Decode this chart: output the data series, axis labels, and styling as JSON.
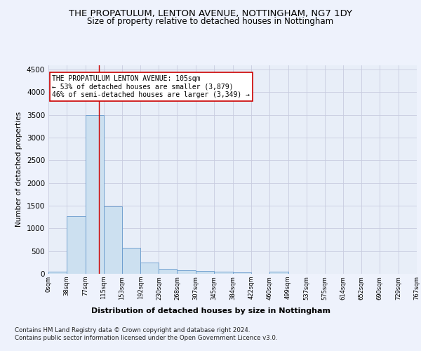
{
  "title": "THE PROPATULUM, LENTON AVENUE, NOTTINGHAM, NG7 1DY",
  "subtitle": "Size of property relative to detached houses in Nottingham",
  "xlabel": "Distribution of detached houses by size in Nottingham",
  "ylabel": "Number of detached properties",
  "bar_edges": [
    0,
    38,
    77,
    115,
    153,
    192,
    230,
    268,
    307,
    345,
    384,
    422,
    460,
    499,
    537,
    575,
    614,
    652,
    690,
    729,
    767
  ],
  "bar_heights": [
    40,
    1270,
    3500,
    1480,
    570,
    240,
    115,
    80,
    55,
    45,
    35,
    0,
    50,
    0,
    0,
    0,
    0,
    0,
    0,
    0
  ],
  "bar_color": "#cce0f0",
  "bar_edgecolor": "#6699cc",
  "property_size": 105,
  "vline_color": "#cc0000",
  "annotation_text": "THE PROPATULUM LENTON AVENUE: 105sqm\n← 53% of detached houses are smaller (3,879)\n46% of semi-detached houses are larger (3,349) →",
  "annotation_box_color": "#ffffff",
  "annotation_box_edgecolor": "#cc0000",
  "ylim": [
    0,
    4600
  ],
  "yticks": [
    0,
    500,
    1000,
    1500,
    2000,
    2500,
    3000,
    3500,
    4000,
    4500
  ],
  "footnote1": "Contains HM Land Registry data © Crown copyright and database right 2024.",
  "footnote2": "Contains public sector information licensed under the Open Government Licence v3.0.",
  "bg_color": "#eef2fc",
  "plot_bg_color": "#e8eef8",
  "grid_color": "#c8cce0",
  "title_fontsize": 9.5,
  "subtitle_fontsize": 8.5,
  "tick_labels": [
    "0sqm",
    "38sqm",
    "77sqm",
    "115sqm",
    "153sqm",
    "192sqm",
    "230sqm",
    "268sqm",
    "307sqm",
    "345sqm",
    "384sqm",
    "422sqm",
    "460sqm",
    "499sqm",
    "537sqm",
    "575sqm",
    "614sqm",
    "652sqm",
    "690sqm",
    "729sqm",
    "767sqm"
  ]
}
